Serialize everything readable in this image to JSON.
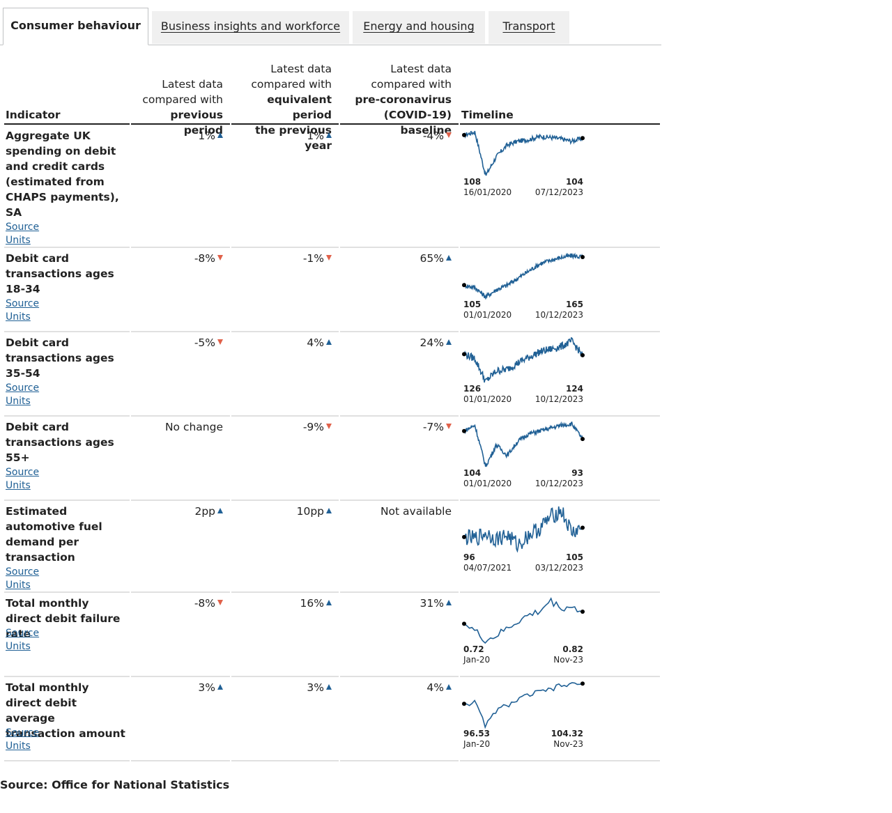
{
  "tabs": [
    {
      "label": "Consumer behaviour",
      "active": true
    },
    {
      "label": "Business insights and workforce",
      "active": false
    },
    {
      "label": "Energy and housing",
      "active": false
    },
    {
      "label": "Transport",
      "active": false
    }
  ],
  "table": {
    "headers": {
      "indicator": "Indicator",
      "prev_line1": "Latest data",
      "prev_line2": "compared with",
      "prev_line3": "previous period",
      "year_line1": "Latest data",
      "year_line2": "compared with",
      "year_line3": "equivalent period",
      "year_line4": "the previous year",
      "base_line1": "Latest data",
      "base_line2": "compared with",
      "base_line3": "pre-coronavirus",
      "base_line4": "(COVID-19) baseline",
      "timeline": "Timeline"
    },
    "link_source": "Source",
    "link_units": "Units",
    "rows": [
      {
        "indicator": "Aggregate UK spending on debit and credit cards (estimated from CHAPS payments), SA",
        "prev": "1%",
        "prev_dir": "up",
        "year": "1%",
        "year_dir": "up",
        "base": "-4%",
        "base_dir": "down",
        "spark": {
          "start_value": "108",
          "end_value": "104",
          "start_date": "16/01/2020",
          "end_date": "07/12/2023",
          "profile": "spending",
          "series": [
            108,
            60,
            100,
            102,
            104,
            103,
            104
          ]
        }
      },
      {
        "indicator": "Debit card transactions ages 18-34",
        "prev": "-8%",
        "prev_dir": "down",
        "year": "-1%",
        "year_dir": "down",
        "base": "65%",
        "base_dir": "up",
        "spark": {
          "start_value": "105",
          "end_value": "165",
          "start_date": "01/01/2020",
          "end_date": "10/12/2023",
          "profile": "young",
          "series": [
            105,
            80,
            110,
            140,
            160,
            170,
            165
          ]
        }
      },
      {
        "indicator": "Debit card transactions ages 35-54",
        "prev": "-5%",
        "prev_dir": "down",
        "year": "4%",
        "year_dir": "up",
        "base": "24%",
        "base_dir": "up",
        "spark": {
          "start_value": "126",
          "end_value": "124",
          "start_date": "01/01/2020",
          "end_date": "10/12/2023",
          "profile": "middle",
          "series": [
            126,
            85,
            100,
            115,
            125,
            135,
            124
          ]
        }
      },
      {
        "indicator": "Debit card transactions ages 55+",
        "prev": "No change",
        "prev_dir": "none",
        "year": "-9%",
        "year_dir": "down",
        "base": "-7%",
        "base_dir": "down",
        "spark": {
          "start_value": "104",
          "end_value": "93",
          "start_date": "01/01/2020",
          "end_date": "10/12/2023",
          "profile": "older",
          "series": [
            104,
            55,
            70,
            90,
            100,
            106,
            93
          ]
        }
      },
      {
        "indicator": "Estimated automotive fuel demand per transaction",
        "prev": "2pp",
        "prev_dir": "up",
        "year": "10pp",
        "year_dir": "up",
        "base": "Not available",
        "base_dir": "none",
        "spark": {
          "start_value": "96",
          "end_value": "105",
          "start_date": "04/07/2021",
          "end_date": "03/12/2023",
          "profile": "fuel",
          "series": [
            96,
            95,
            100,
            88,
            98,
            112,
            105
          ]
        }
      },
      {
        "indicator": "Total monthly direct debit failure rate",
        "prev": "-8%",
        "prev_dir": "down",
        "year": "16%",
        "year_dir": "up",
        "base": "31%",
        "base_dir": "up",
        "spark": {
          "start_value": "0.72",
          "end_value": "0.82",
          "start_date": "Jan-20",
          "end_date": "Nov-23",
          "profile": "ddfail",
          "series": [
            0.72,
            0.6,
            0.65,
            0.75,
            0.85,
            0.84,
            0.82
          ]
        }
      },
      {
        "indicator": "Total monthly direct debit average transaction amount",
        "prev": "3%",
        "prev_dir": "up",
        "year": "3%",
        "year_dir": "up",
        "base": "4%",
        "base_dir": "up",
        "spark": {
          "start_value": "96.53",
          "end_value": "104.32",
          "start_date": "Jan-20",
          "end_date": "Nov-23",
          "profile": "ddamount",
          "series": [
            96.53,
            90,
            97,
            99,
            101,
            103,
            104.32
          ]
        }
      }
    ]
  },
  "footer": "Source: Office for National Statistics",
  "colors": {
    "line": "#206095",
    "up": "#206095",
    "down": "#e0614a",
    "link": "#206095"
  }
}
